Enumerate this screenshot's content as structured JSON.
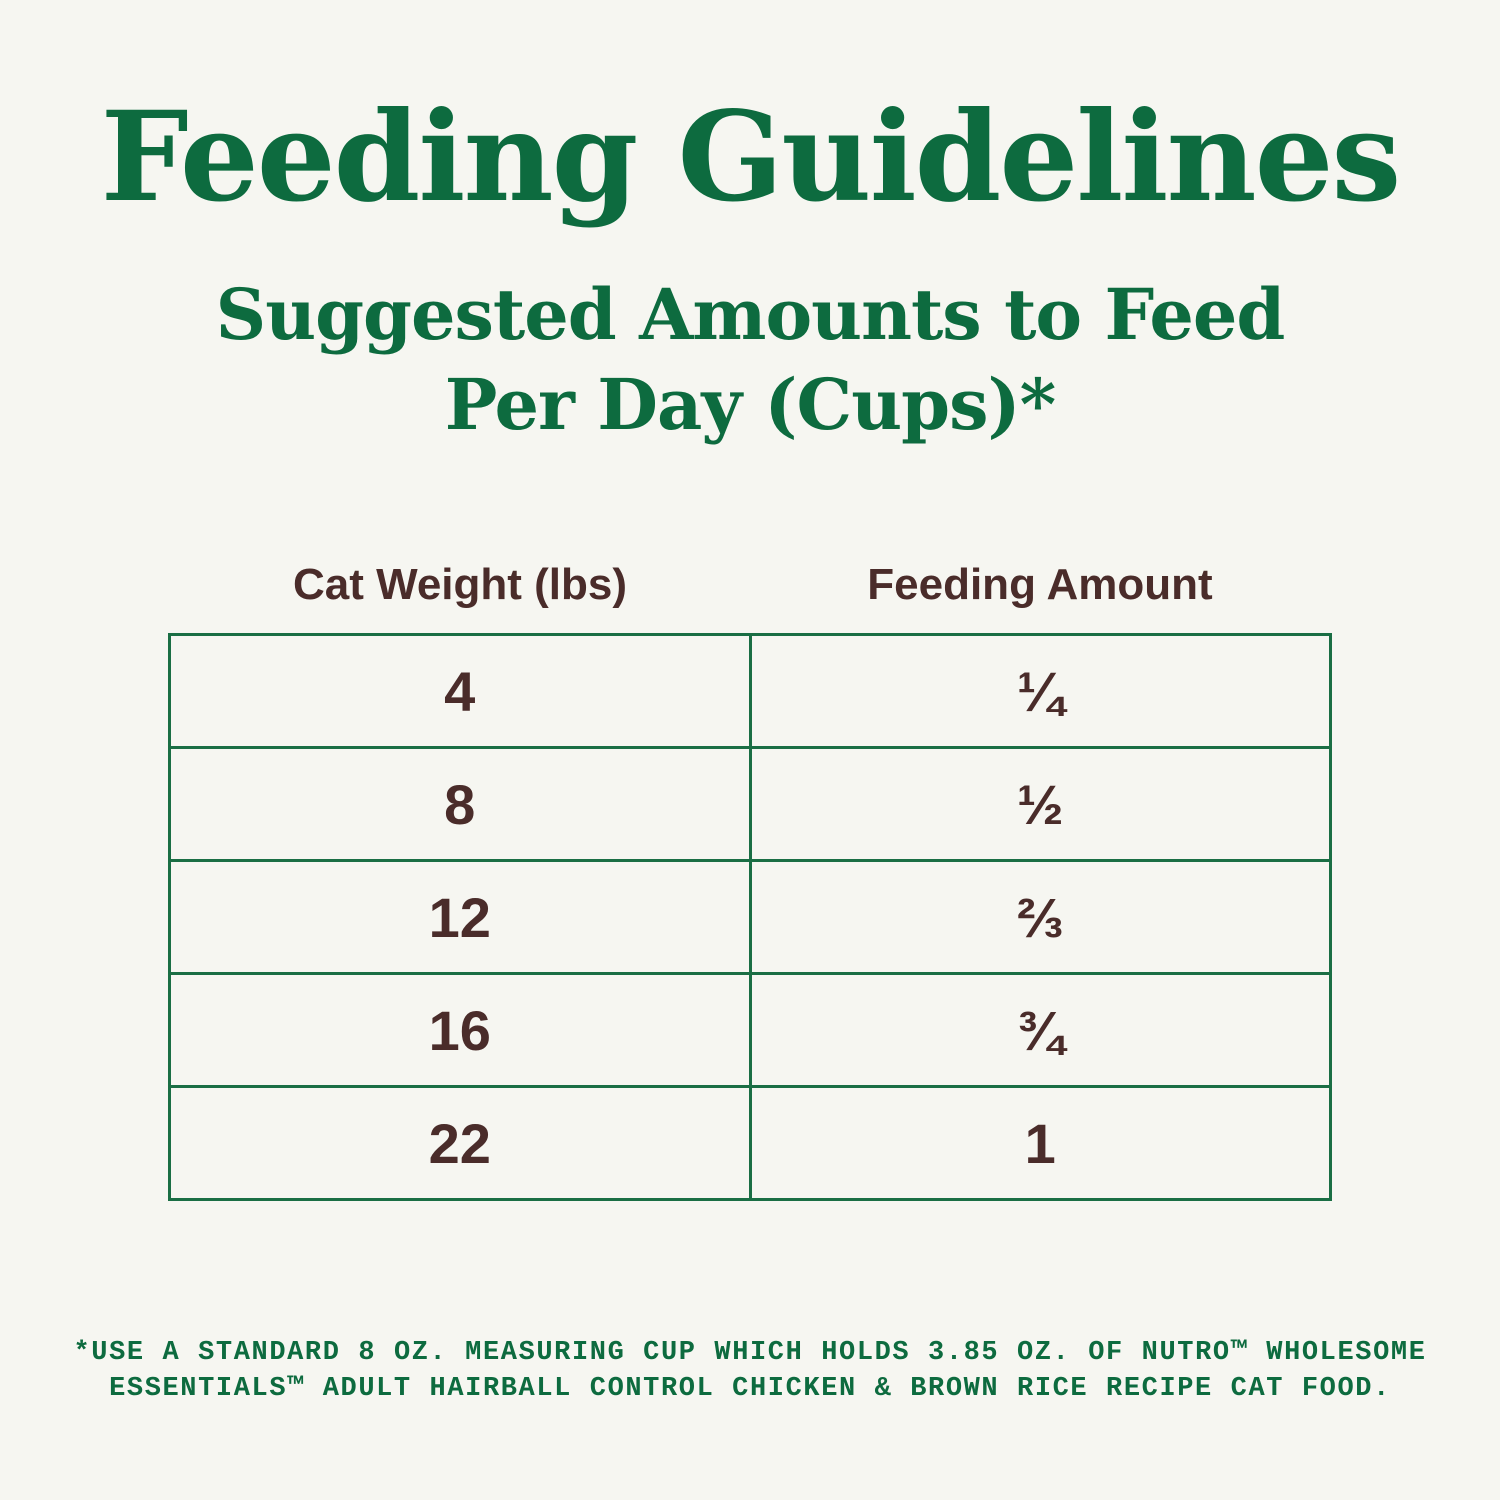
{
  "header": {
    "title": "Feeding Guidelines",
    "subtitle": [
      "Suggested Amounts to Feed",
      "Per Day (Cups)*"
    ]
  },
  "table": {
    "columns": [
      "Cat Weight (lbs)",
      "Feeding Amount"
    ],
    "rows": [
      [
        4,
        "¼"
      ],
      [
        8,
        "½"
      ],
      [
        12,
        "⅔"
      ],
      [
        16,
        "¾"
      ],
      [
        22,
        1
      ]
    ]
  },
  "footnote": [
    "*USE A STANDARD 8 OZ. MEASURING CUP WHICH HOLDS 3.85 OZ. OF NUTRO™ WHOLESOME",
    "ESSENTIALS™ ADULT HAIRBALL CONTROL CHICKEN & BROWN RICE RECIPE CAT FOOD."
  ]
}
